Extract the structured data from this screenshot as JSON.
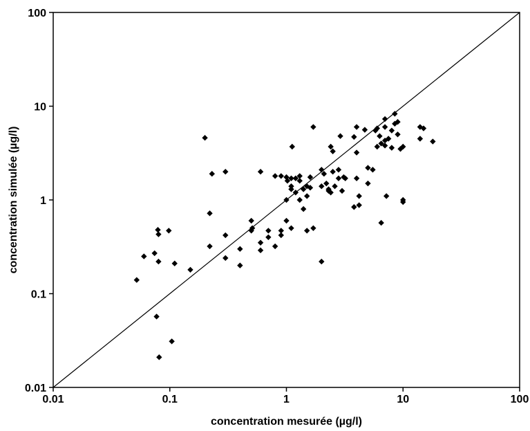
{
  "chart_data": {
    "type": "scatter",
    "title": "",
    "xlabel": "concentration mesurée (µg/l)",
    "ylabel": "concentration simulée (µg/l)",
    "x_scale": "log",
    "y_scale": "log",
    "xlim": [
      0.01,
      100
    ],
    "ylim": [
      0.01,
      100
    ],
    "x_ticks": [
      "0.01",
      "0.1",
      "1",
      "10",
      "100"
    ],
    "y_ticks": [
      "0.01",
      "0.1",
      "1",
      "10",
      "100"
    ],
    "grid": false,
    "legend": "none",
    "reference_line": {
      "kind": "1:1",
      "from": [
        0.01,
        0.01
      ],
      "to": [
        100,
        100
      ]
    },
    "marker": {
      "shape": "diamond",
      "color": "#000000"
    },
    "points": [
      [
        0.052,
        0.14
      ],
      [
        0.06,
        0.25
      ],
      [
        0.074,
        0.27
      ],
      [
        0.077,
        0.057
      ],
      [
        0.081,
        0.021
      ],
      [
        0.079,
        0.48
      ],
      [
        0.08,
        0.43
      ],
      [
        0.08,
        0.22
      ],
      [
        0.098,
        0.47
      ],
      [
        0.104,
        0.031
      ],
      [
        0.11,
        0.21
      ],
      [
        0.15,
        0.18
      ],
      [
        0.2,
        4.6
      ],
      [
        0.22,
        0.32
      ],
      [
        0.22,
        0.72
      ],
      [
        0.23,
        1.9
      ],
      [
        0.3,
        2.0
      ],
      [
        0.3,
        0.42
      ],
      [
        0.3,
        0.24
      ],
      [
        0.4,
        0.3
      ],
      [
        0.4,
        0.2
      ],
      [
        0.5,
        0.6
      ],
      [
        0.5,
        0.47
      ],
      [
        0.51,
        0.5
      ],
      [
        0.6,
        2.0
      ],
      [
        0.6,
        0.35
      ],
      [
        0.6,
        0.29
      ],
      [
        0.7,
        0.47
      ],
      [
        0.7,
        0.4
      ],
      [
        0.8,
        1.8
      ],
      [
        0.8,
        0.32
      ],
      [
        0.9,
        1.8
      ],
      [
        0.9,
        0.47
      ],
      [
        0.9,
        0.42
      ],
      [
        1.0,
        1.75
      ],
      [
        1.0,
        1.0
      ],
      [
        1.0,
        0.6
      ],
      [
        1.02,
        1.6
      ],
      [
        1.1,
        1.4
      ],
      [
        1.1,
        1.7
      ],
      [
        1.1,
        1.3
      ],
      [
        1.1,
        0.5
      ],
      [
        1.12,
        3.7
      ],
      [
        1.2,
        1.7
      ],
      [
        1.2,
        1.2
      ],
      [
        1.3,
        1.8
      ],
      [
        1.3,
        1.6
      ],
      [
        1.3,
        1.0
      ],
      [
        1.4,
        1.3
      ],
      [
        1.4,
        0.8
      ],
      [
        1.5,
        1.4
      ],
      [
        1.5,
        1.1
      ],
      [
        1.5,
        0.47
      ],
      [
        1.6,
        1.75
      ],
      [
        1.6,
        1.35
      ],
      [
        1.7,
        6.0
      ],
      [
        1.7,
        0.5
      ],
      [
        2.0,
        2.1
      ],
      [
        2.0,
        1.4
      ],
      [
        2.0,
        0.22
      ],
      [
        2.1,
        1.9
      ],
      [
        2.2,
        1.5
      ],
      [
        2.3,
        1.3
      ],
      [
        2.3,
        1.25
      ],
      [
        2.4,
        3.7
      ],
      [
        2.4,
        1.2
      ],
      [
        2.5,
        3.3
      ],
      [
        2.5,
        2.0
      ],
      [
        2.6,
        1.4
      ],
      [
        2.8,
        2.1
      ],
      [
        2.8,
        1.7
      ],
      [
        2.9,
        4.8
      ],
      [
        3.0,
        1.25
      ],
      [
        3.1,
        1.75
      ],
      [
        3.2,
        1.7
      ],
      [
        3.8,
        4.7
      ],
      [
        3.8,
        0.84
      ],
      [
        4.0,
        6.0
      ],
      [
        4.0,
        3.2
      ],
      [
        4.0,
        1.7
      ],
      [
        4.2,
        1.1
      ],
      [
        4.2,
        0.88
      ],
      [
        4.7,
        5.6
      ],
      [
        5.0,
        2.2
      ],
      [
        5.0,
        1.5
      ],
      [
        5.5,
        2.1
      ],
      [
        5.8,
        5.5
      ],
      [
        6.0,
        5.8
      ],
      [
        6.0,
        3.7
      ],
      [
        6.3,
        4.8
      ],
      [
        6.5,
        0.57
      ],
      [
        6.5,
        4.0
      ],
      [
        7.0,
        7.3
      ],
      [
        7.0,
        6.0
      ],
      [
        7.0,
        4.3
      ],
      [
        7.0,
        3.8
      ],
      [
        7.2,
        1.1
      ],
      [
        7.5,
        4.5
      ],
      [
        8.0,
        5.5
      ],
      [
        8.0,
        3.6
      ],
      [
        8.5,
        8.3
      ],
      [
        8.5,
        6.5
      ],
      [
        9.0,
        6.8
      ],
      [
        9.0,
        5.0
      ],
      [
        9.5,
        3.5
      ],
      [
        10.0,
        1.0
      ],
      [
        10.0,
        0.95
      ],
      [
        10.0,
        3.7
      ],
      [
        14.0,
        6.0
      ],
      [
        14.0,
        4.5
      ],
      [
        15.0,
        5.8
      ],
      [
        18.0,
        4.2
      ]
    ]
  }
}
